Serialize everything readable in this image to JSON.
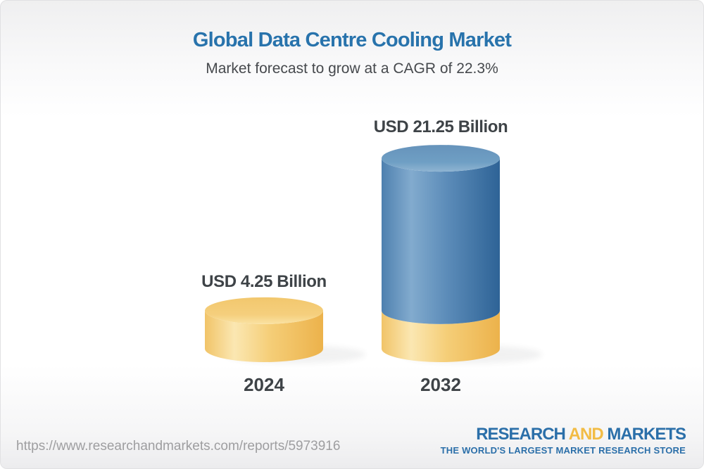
{
  "header": {
    "title": "Global Data Centre Cooling Market",
    "subtitle": "Market forecast to grow at a CAGR of 22.3%"
  },
  "chart_data": {
    "type": "bar",
    "subtype": "3d-cylinder",
    "title": "Global Data Centre Cooling Market",
    "subtitle": "Market forecast to grow at a CAGR of 22.3%",
    "unit": "USD Billion",
    "cagr_percent": 22.3,
    "categories": [
      "2024",
      "2032"
    ],
    "values": [
      4.25,
      21.25
    ],
    "bars": [
      {
        "category": "2024",
        "value": 4.25,
        "label": "USD 4.25 Billion",
        "segments": [
          {
            "value": 4.25,
            "color": "gold"
          }
        ]
      },
      {
        "category": "2032",
        "value": 21.25,
        "label": "USD 21.25 Billion",
        "segments": [
          {
            "value": 4.25,
            "color": "gold"
          },
          {
            "value": 17.0,
            "color": "blue"
          }
        ]
      }
    ],
    "palette": {
      "gold": "#F2C76D",
      "blue": "#4A80B0",
      "label_text": "#3E4347"
    },
    "legend": false,
    "axes": false
  },
  "footer": {
    "url": "https://www.researchandmarkets.com/reports/5973916",
    "logo": {
      "part1": "RESEARCH",
      "part2": "AND",
      "part3": "MARKETS",
      "tagline": "THE WORLD'S LARGEST MARKET RESEARCH STORE",
      "blue": "#2B6FA9",
      "gold": "#F2BC45"
    }
  },
  "colors": {
    "title_blue": "#2873AC",
    "subtitle_gray": "#46494D",
    "url_gray": "#9E9EA0"
  }
}
